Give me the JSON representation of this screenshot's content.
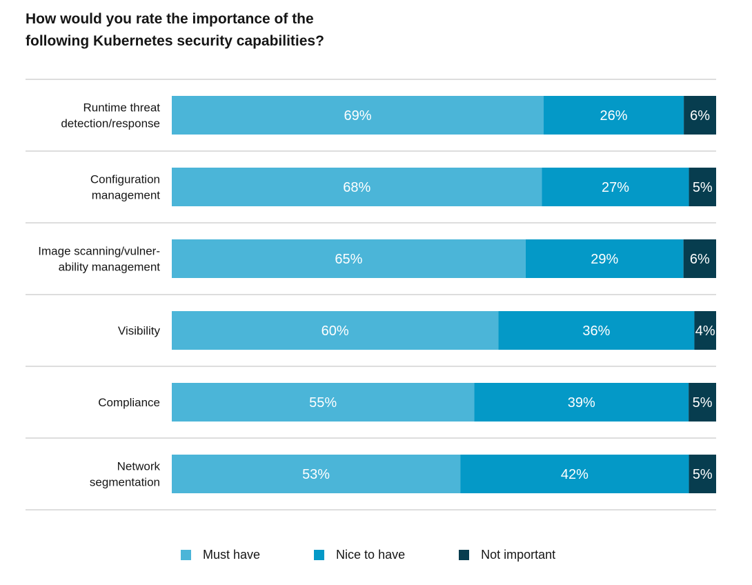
{
  "chart_data": {
    "type": "bar",
    "orientation": "horizontal",
    "stacked": true,
    "title": "How would you rate the importance of the following Kubernetes security capabilities?",
    "title_lines": [
      "How would you rate the importance of the",
      "following Kubernetes security capabilities?"
    ],
    "xlim": [
      0,
      100
    ],
    "grid": false,
    "legend_position": "bottom",
    "categories": [
      [
        "Runtime threat",
        "detection/response"
      ],
      [
        "Configuration",
        "management"
      ],
      [
        "Image scanning/vulner-",
        "ability management"
      ],
      [
        "Visibility"
      ],
      [
        "Compliance"
      ],
      [
        "Network",
        "segmentation"
      ]
    ],
    "series": [
      {
        "name": "Must have",
        "color": "#4bb5d8",
        "values": [
          69,
          68,
          65,
          60,
          55,
          53
        ],
        "labels": [
          "69%",
          "68%",
          "65%",
          "60%",
          "55%",
          "53%"
        ]
      },
      {
        "name": "Nice to have",
        "color": "#0499c7",
        "values": [
          26,
          27,
          29,
          36,
          39,
          42
        ],
        "labels": [
          "26%",
          "27%",
          "29%",
          "36%",
          "39%",
          "42%"
        ]
      },
      {
        "name": "Not important",
        "color": "#073d4f",
        "values": [
          6,
          5,
          6,
          4,
          5,
          5
        ],
        "labels": [
          "6%",
          "5%",
          "6%",
          "4%",
          "5%",
          "5%"
        ]
      }
    ]
  }
}
